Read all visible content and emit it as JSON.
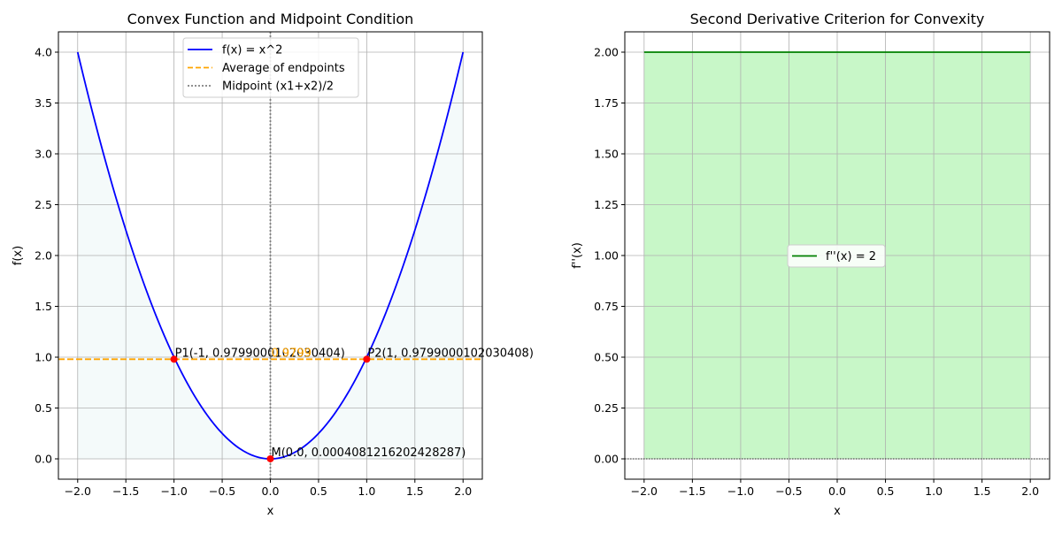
{
  "chart_data": [
    {
      "type": "line",
      "title": "Convex Function and Midpoint Condition",
      "xlabel": "x",
      "ylabel": "f(x)",
      "xlim": [
        -2.2,
        2.2
      ],
      "ylim": [
        -0.2,
        4.2
      ],
      "xticks": [
        -2.0,
        -1.5,
        -1.0,
        -0.5,
        0.0,
        0.5,
        1.0,
        1.5,
        2.0
      ],
      "xtick_labels": [
        "−2.0",
        "−1.5",
        "−1.0",
        "−0.5",
        "0.0",
        "0.5",
        "1.0",
        "1.5",
        "2.0"
      ],
      "yticks": [
        0.0,
        0.5,
        1.0,
        1.5,
        2.0,
        2.5,
        3.0,
        3.5,
        4.0
      ],
      "ytick_labels": [
        "0.0",
        "0.5",
        "1.0",
        "1.5",
        "2.0",
        "2.5",
        "3.0",
        "3.5",
        "4.0"
      ],
      "grid": true,
      "legend_position": "top-center",
      "series": [
        {
          "name": "f(x) = x^2",
          "function": "x^2",
          "x_range": [
            -2,
            2
          ],
          "color": "#0000ff",
          "style": "solid"
        },
        {
          "name": "Average of endpoints",
          "y": 0.9799,
          "color": "#ffa500",
          "style": "dashed"
        },
        {
          "name": "Midpoint (x1+x2)/2",
          "x": 0.0,
          "color": "#808080",
          "style": "dotted"
        }
      ],
      "fill": {
        "under": "x^2",
        "x_range": [
          -2,
          2
        ],
        "color": "#e0f0f0"
      },
      "points": [
        {
          "x": -1,
          "y": 0.9799,
          "label": "P1(-1, 0.9799000102030404)",
          "color": "#ff0000"
        },
        {
          "x": 1,
          "y": 0.9799,
          "label": "P2(1, 0.9799000102030408)",
          "color": "#ff0000"
        },
        {
          "x": 0,
          "y": 0.0004,
          "label": "M(0.0, 0.0004081216202428287)",
          "color": "#ff0000"
        }
      ],
      "annotations": [
        {
          "x": 0.0,
          "y": 0.9799,
          "text": "0.9799",
          "color": "#ffa500"
        }
      ]
    },
    {
      "type": "area",
      "title": "Second Derivative Criterion for Convexity",
      "xlabel": "x",
      "ylabel": "f''(x)",
      "xlim": [
        -2.2,
        2.2
      ],
      "ylim": [
        -0.1,
        2.1
      ],
      "xticks": [
        -2.0,
        -1.5,
        -1.0,
        -0.5,
        0.0,
        0.5,
        1.0,
        1.5,
        2.0
      ],
      "xtick_labels": [
        "−2.0",
        "−1.5",
        "−1.0",
        "−0.5",
        "0.0",
        "0.5",
        "1.0",
        "1.5",
        "2.0"
      ],
      "yticks": [
        0.0,
        0.25,
        0.5,
        0.75,
        1.0,
        1.25,
        1.5,
        1.75,
        2.0
      ],
      "ytick_labels": [
        "0.00",
        "0.25",
        "0.50",
        "0.75",
        "1.00",
        "1.25",
        "1.50",
        "1.75",
        "2.00"
      ],
      "grid": true,
      "legend_position": "center",
      "series": [
        {
          "name": "f''(x) = 2",
          "x": [
            -2,
            2
          ],
          "y": [
            2,
            2
          ],
          "color": "#008000",
          "style": "solid"
        }
      ],
      "fill": {
        "y_range": [
          0,
          2
        ],
        "x_range": [
          -2,
          2
        ],
        "color": "#c8f7c8"
      },
      "baseline": {
        "y": 0,
        "color": "#000000",
        "style": "dotted"
      }
    }
  ]
}
